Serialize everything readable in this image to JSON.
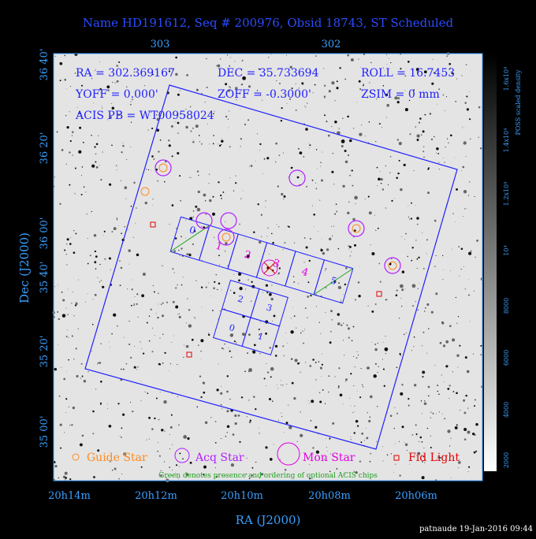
{
  "title": "Name HD191612, Seq # 200976, Obsid 18743, ST Scheduled",
  "top_ticks": [
    "303",
    "302"
  ],
  "left_ticks": [
    "36 40'",
    "36 20'",
    "36 00'",
    "35 40'",
    "35 20'",
    "35 00'"
  ],
  "bottom_ticks": [
    "20h14m",
    "20h12m",
    "20h10m",
    "20h08m",
    "20h06m"
  ],
  "x_label": "RA (J2000)",
  "y_label": "Dec (J2000)",
  "info": [
    "RA = 302.369167",
    "DEC = 35.733694",
    "ROLL = 16.7453",
    "YOFF = 0.000'",
    "ZOFF = -0.3000'",
    "ZSIM = 0 mm",
    "ACIS PB = WT00958024"
  ],
  "s_chips": [
    "0",
    "1",
    "2",
    "3",
    "4",
    "5"
  ],
  "i_chips": [
    "2",
    "3",
    "0",
    "1"
  ],
  "legend": [
    "Guide Star",
    "Acq Star",
    "Mon Star",
    "Fid Light"
  ],
  "note": "Green denotes presence and ordering of optional ACIS chips",
  "colorbar": {
    "label": "POSS scaled density",
    "ticks": [
      "2000",
      "4000",
      "6000",
      "8000",
      "10⁴",
      "1.2x10⁴",
      "1.4x10⁴",
      "1.6x10⁴"
    ]
  },
  "footer": "patnaude 19-Jan-2016 09:44"
}
